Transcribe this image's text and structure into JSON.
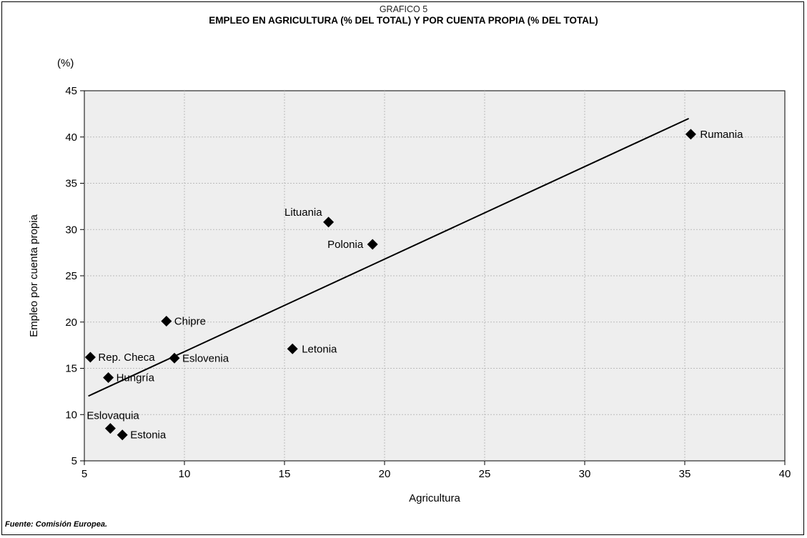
{
  "header": {
    "supertitle": "GRAFICO 5",
    "title": "EMPLEO EN AGRICULTURA (% DEL TOTAL) Y POR CUENTA PROPIA (% DEL TOTAL)"
  },
  "footer": {
    "source": "Fuente:  Comisión Europea."
  },
  "chart_data": {
    "type": "scatter",
    "title": "EMPLEO EN AGRICULTURA (% DEL TOTAL) Y POR CUENTA PROPIA (% DEL TOTAL)",
    "xlabel": "Agricultura",
    "ylabel": "Empleo por cuenta propia",
    "yunit": "(%)",
    "xlim": [
      5,
      40
    ],
    "ylim": [
      5,
      45
    ],
    "xticks": [
      5,
      10,
      15,
      20,
      25,
      30,
      35,
      40
    ],
    "yticks": [
      5,
      10,
      15,
      20,
      25,
      30,
      35,
      40,
      45
    ],
    "grid": true,
    "points": [
      {
        "label": "Rep. Checa",
        "x": 5.3,
        "y": 16.2
      },
      {
        "label": "Hungría",
        "x": 6.2,
        "y": 14.0
      },
      {
        "label": "Eslovaquia",
        "x": 6.3,
        "y": 8.5
      },
      {
        "label": "Estonia",
        "x": 6.9,
        "y": 7.8
      },
      {
        "label": "Chipre",
        "x": 9.1,
        "y": 20.1
      },
      {
        "label": "Eslovenia",
        "x": 9.5,
        "y": 16.1
      },
      {
        "label": "Letonia",
        "x": 15.4,
        "y": 17.1
      },
      {
        "label": "Lituania",
        "x": 17.2,
        "y": 30.8
      },
      {
        "label": "Polonia",
        "x": 19.4,
        "y": 28.4
      },
      {
        "label": "Rumania",
        "x": 35.3,
        "y": 40.3
      }
    ],
    "trendline": {
      "x": [
        5.2,
        35.2
      ],
      "y": [
        12.0,
        42.0
      ]
    }
  }
}
